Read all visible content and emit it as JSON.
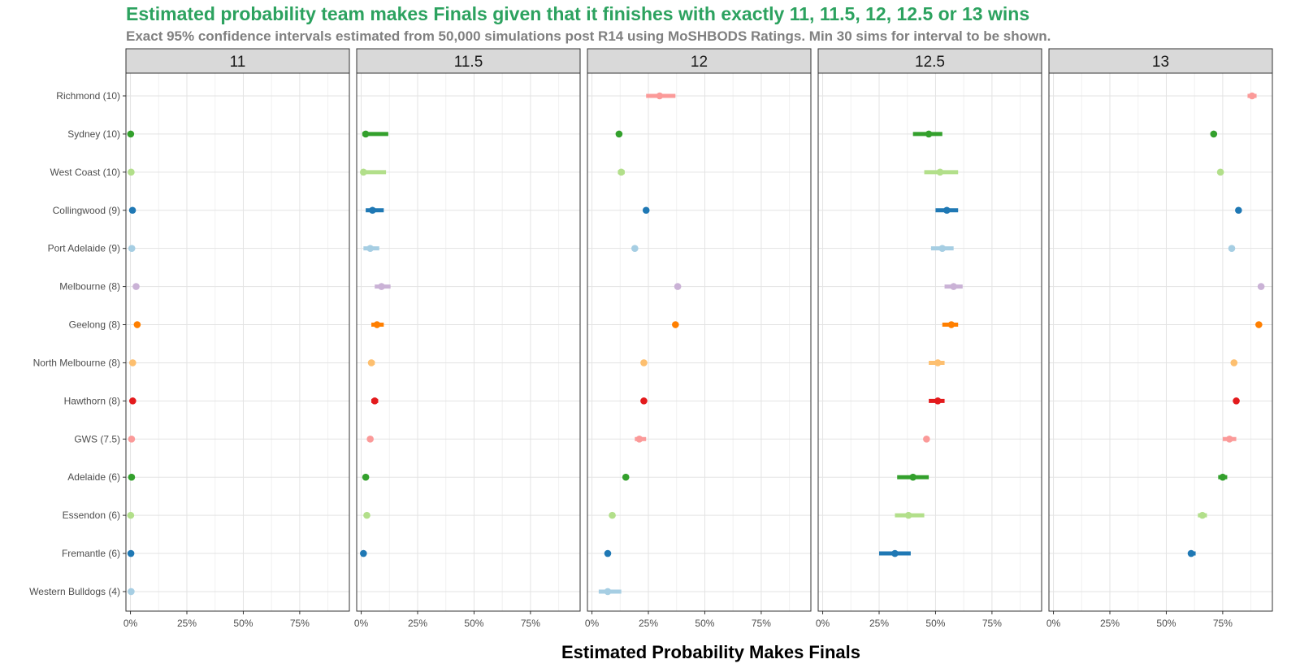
{
  "chart_data": {
    "type": "dot-interval",
    "title": "Estimated probability team makes Finals given that it finishes with exactly 11, 11.5, 12, 12.5 or 13 wins",
    "subtitle": "Exact 95% confidence intervals estimated from 50,000 simulations post R14 using MoSHBODS Ratings. Min 30 sims for interval to be shown.",
    "xlabel": "Estimated Probability Makes Finals",
    "ylabel": "",
    "xlim": [
      -0.02,
      0.97
    ],
    "x_ticks": [
      0,
      0.25,
      0.5,
      0.75
    ],
    "x_tick_labels": [
      "0%",
      "25%",
      "50%",
      "75%"
    ],
    "grid": true,
    "legend": "none",
    "teams": [
      {
        "label": "Richmond (10)",
        "color": "#fb9a99"
      },
      {
        "label": "Sydney (10)",
        "color": "#33a02c"
      },
      {
        "label": "West Coast (10)",
        "color": "#b2df8a"
      },
      {
        "label": "Collingwood (9)",
        "color": "#1f78b4"
      },
      {
        "label": "Port Adelaide (9)",
        "color": "#a6cee3"
      },
      {
        "label": "Melbourne (8)",
        "color": "#cab2d6"
      },
      {
        "label": "Geelong (8)",
        "color": "#ff7f00"
      },
      {
        "label": "North Melbourne (8)",
        "color": "#fdbf6f"
      },
      {
        "label": "Hawthorn (8)",
        "color": "#e31a1c"
      },
      {
        "label": "GWS (7.5)",
        "color": "#fb9a99"
      },
      {
        "label": "Adelaide (6)",
        "color": "#33a02c"
      },
      {
        "label": "Essendon (6)",
        "color": "#b2df8a"
      },
      {
        "label": "Fremantle (6)",
        "color": "#1f78b4"
      },
      {
        "label": "Western Bulldogs (4)",
        "color": "#a6cee3"
      }
    ],
    "panels": [
      {
        "label": "11",
        "points": [
          null,
          {
            "est": 0.001,
            "lo": 0.0,
            "hi": 0.002
          },
          {
            "est": 0.003,
            "lo": 0.001,
            "hi": 0.005
          },
          {
            "est": 0.009,
            "lo": 0.006,
            "hi": 0.012
          },
          {
            "est": 0.006,
            "lo": 0.004,
            "hi": 0.008
          },
          {
            "est": 0.025,
            "lo": 0.02,
            "hi": 0.03
          },
          {
            "est": 0.03,
            "lo": 0.025,
            "hi": 0.036
          },
          {
            "est": 0.01,
            "lo": 0.007,
            "hi": 0.013
          },
          {
            "est": 0.01,
            "lo": 0.007,
            "hi": 0.013
          },
          {
            "est": 0.005,
            "lo": 0.003,
            "hi": 0.007
          },
          {
            "est": 0.005,
            "lo": 0.003,
            "hi": 0.007
          },
          {
            "est": 0.001,
            "lo": 0.0,
            "hi": 0.002
          },
          {
            "est": 0.002,
            "lo": 0.001,
            "hi": 0.003
          },
          {
            "est": 0.003,
            "lo": 0.002,
            "hi": 0.004
          }
        ]
      },
      {
        "label": "11.5",
        "points": [
          null,
          {
            "est": 0.02,
            "lo": 0.005,
            "hi": 0.12
          },
          {
            "est": 0.01,
            "lo": 0.0,
            "hi": 0.11
          },
          {
            "est": 0.05,
            "lo": 0.02,
            "hi": 0.1
          },
          {
            "est": 0.04,
            "lo": 0.01,
            "hi": 0.08
          },
          {
            "est": 0.09,
            "lo": 0.06,
            "hi": 0.13
          },
          {
            "est": 0.07,
            "lo": 0.045,
            "hi": 0.1
          },
          {
            "est": 0.045,
            "lo": 0.035,
            "hi": 0.06
          },
          {
            "est": 0.06,
            "lo": 0.045,
            "hi": 0.075
          },
          {
            "est": 0.04,
            "lo": 0.03,
            "hi": 0.05
          },
          {
            "est": 0.02,
            "lo": 0.015,
            "hi": 0.03
          },
          {
            "est": 0.025,
            "lo": 0.015,
            "hi": 0.035
          },
          {
            "est": 0.01,
            "lo": 0.005,
            "hi": 0.015
          },
          null
        ]
      },
      {
        "label": "12",
        "points": [
          {
            "est": 0.3,
            "lo": 0.24,
            "hi": 0.37
          },
          {
            "est": 0.12,
            "lo": 0.11,
            "hi": 0.13
          },
          {
            "est": 0.13,
            "lo": 0.115,
            "hi": 0.145
          },
          {
            "est": 0.24,
            "lo": 0.23,
            "hi": 0.25
          },
          {
            "est": 0.19,
            "lo": 0.18,
            "hi": 0.2
          },
          {
            "est": 0.38,
            "lo": 0.37,
            "hi": 0.39
          },
          {
            "est": 0.37,
            "lo": 0.36,
            "hi": 0.38
          },
          {
            "est": 0.23,
            "lo": 0.22,
            "hi": 0.24
          },
          {
            "est": 0.23,
            "lo": 0.22,
            "hi": 0.24
          },
          {
            "est": 0.21,
            "lo": 0.19,
            "hi": 0.24
          },
          {
            "est": 0.15,
            "lo": 0.14,
            "hi": 0.16
          },
          {
            "est": 0.09,
            "lo": 0.08,
            "hi": 0.1
          },
          {
            "est": 0.07,
            "lo": 0.06,
            "hi": 0.08
          },
          {
            "est": 0.07,
            "lo": 0.03,
            "hi": 0.13
          }
        ]
      },
      {
        "label": "12.5",
        "points": [
          null,
          {
            "est": 0.47,
            "lo": 0.4,
            "hi": 0.53
          },
          {
            "est": 0.52,
            "lo": 0.45,
            "hi": 0.6
          },
          {
            "est": 0.55,
            "lo": 0.5,
            "hi": 0.6
          },
          {
            "est": 0.53,
            "lo": 0.48,
            "hi": 0.58
          },
          {
            "est": 0.58,
            "lo": 0.54,
            "hi": 0.62
          },
          {
            "est": 0.57,
            "lo": 0.53,
            "hi": 0.6
          },
          {
            "est": 0.51,
            "lo": 0.47,
            "hi": 0.54
          },
          {
            "est": 0.51,
            "lo": 0.47,
            "hi": 0.54
          },
          {
            "est": 0.46,
            "lo": 0.45,
            "hi": 0.47
          },
          {
            "est": 0.4,
            "lo": 0.33,
            "hi": 0.47
          },
          {
            "est": 0.38,
            "lo": 0.32,
            "hi": 0.45
          },
          {
            "est": 0.32,
            "lo": 0.25,
            "hi": 0.39
          },
          null
        ]
      },
      {
        "label": "13",
        "points": [
          {
            "est": 0.88,
            "lo": 0.86,
            "hi": 0.9
          },
          {
            "est": 0.71,
            "lo": 0.7,
            "hi": 0.72
          },
          {
            "est": 0.74,
            "lo": 0.73,
            "hi": 0.75
          },
          {
            "est": 0.82,
            "lo": 0.81,
            "hi": 0.83
          },
          {
            "est": 0.79,
            "lo": 0.78,
            "hi": 0.8
          },
          {
            "est": 0.92,
            "lo": 0.91,
            "hi": 0.93
          },
          {
            "est": 0.91,
            "lo": 0.9,
            "hi": 0.92
          },
          {
            "est": 0.8,
            "lo": 0.79,
            "hi": 0.81
          },
          {
            "est": 0.81,
            "lo": 0.8,
            "hi": 0.82
          },
          {
            "est": 0.78,
            "lo": 0.75,
            "hi": 0.81
          },
          {
            "est": 0.75,
            "lo": 0.73,
            "hi": 0.77
          },
          {
            "est": 0.66,
            "lo": 0.64,
            "hi": 0.68
          },
          {
            "est": 0.61,
            "lo": 0.6,
            "hi": 0.63
          },
          null
        ]
      }
    ]
  }
}
